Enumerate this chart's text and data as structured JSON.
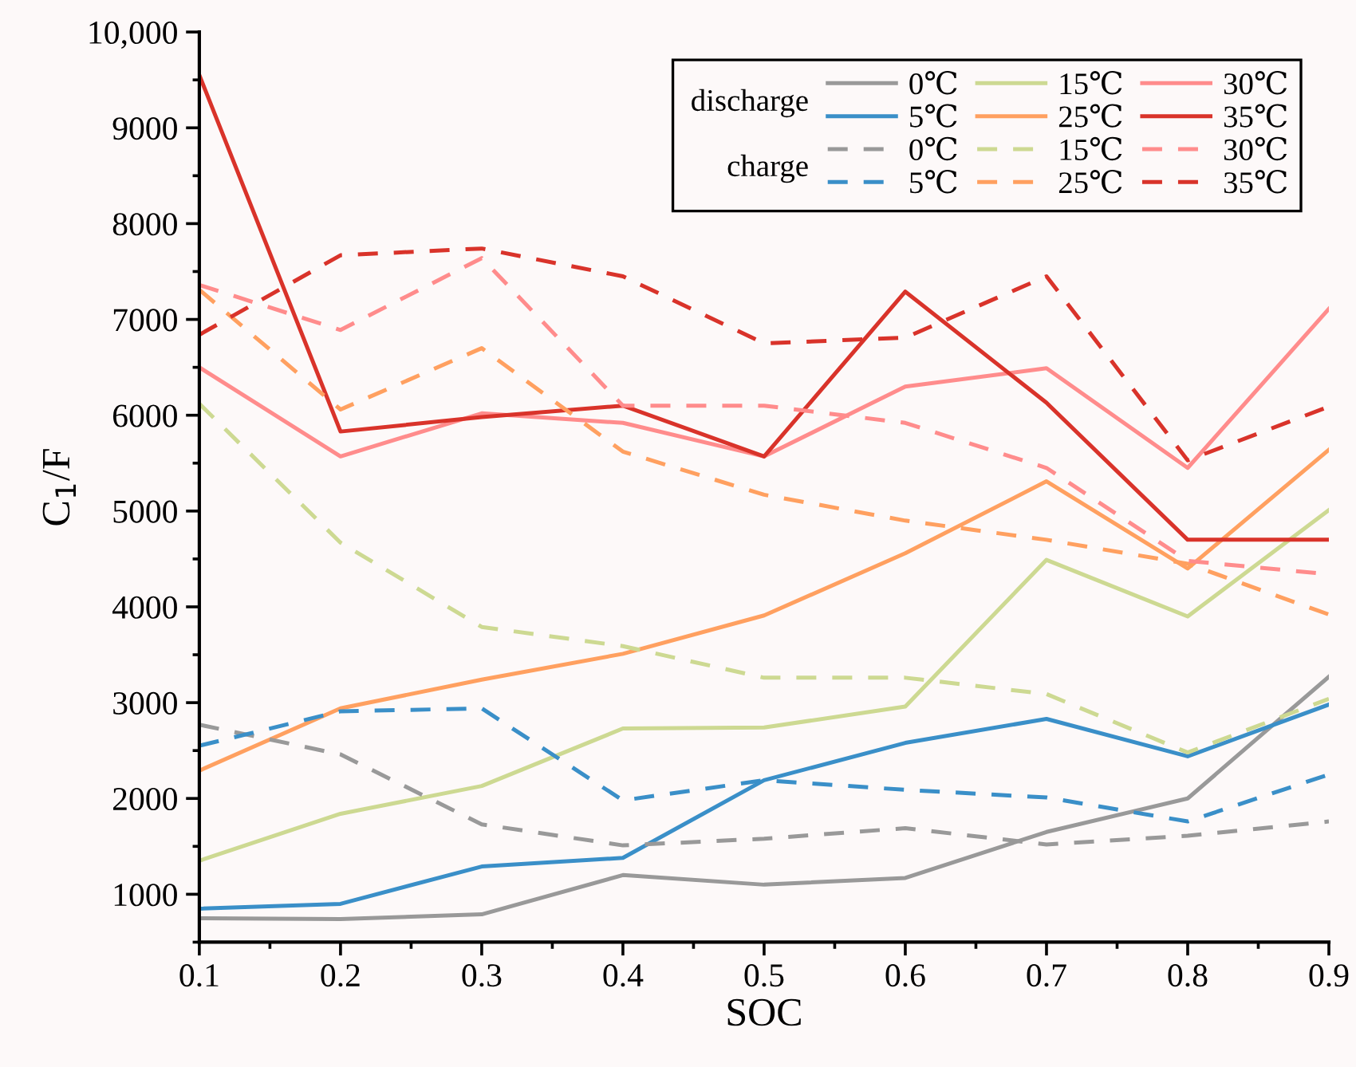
{
  "chart_data": {
    "type": "line",
    "xlabel": "SOC",
    "ylabel": "C$_{1}$/F",
    "x": [
      0.1,
      0.2,
      0.3,
      0.4,
      0.5,
      0.6,
      0.7,
      0.8,
      0.9
    ],
    "xlim": [
      0.1,
      0.9
    ],
    "xticks": [
      0.1,
      0.2,
      0.3,
      0.4,
      0.5,
      0.6,
      0.7,
      0.8,
      0.9
    ],
    "ylim": [
      500,
      10000
    ],
    "yticks": [
      1000,
      2000,
      3000,
      4000,
      5000,
      6000,
      7000,
      8000,
      9000,
      {
        "value": 10000,
        "label": "10,000"
      }
    ],
    "grid": false,
    "legend": "top right",
    "marker": "none",
    "annotations": [
      "discharge",
      "charge"
    ],
    "series": [
      {
        "name": "0℃",
        "color": "#999999",
        "line_style": "solid",
        "values": [
          750,
          740,
          790,
          1200,
          1100,
          1170,
          1650,
          2000,
          3270
        ]
      },
      {
        "name": "5℃",
        "color": "#3a8fc8",
        "line_style": "solid",
        "values": [
          850,
          900,
          1290,
          1380,
          2190,
          2580,
          2830,
          2440,
          2980
        ]
      },
      {
        "name": "15℃",
        "color": "#cdd992",
        "line_style": "solid",
        "values": [
          1350,
          1840,
          2130,
          2730,
          2740,
          2960,
          4490,
          3900,
          5010
        ]
      },
      {
        "name": "25℃",
        "color": "#ffa060",
        "line_style": "solid",
        "values": [
          2290,
          2940,
          3240,
          3510,
          3910,
          4560,
          5310,
          4400,
          5640
        ]
      },
      {
        "name": "30℃",
        "color": "#ff8c8c",
        "line_style": "solid",
        "values": [
          6500,
          5570,
          6020,
          5920,
          5570,
          6300,
          6490,
          5450,
          7110
        ]
      },
      {
        "name": "35℃",
        "color": "#d9332a",
        "line_style": "solid",
        "values": [
          9550,
          5830,
          5980,
          6100,
          5570,
          7290,
          6130,
          4700,
          4700
        ]
      },
      {
        "name": "0℃",
        "color": "#999999",
        "line_style": "dashed",
        "values": [
          2770,
          2460,
          1730,
          1510,
          1580,
          1690,
          1520,
          1610,
          1760
        ]
      },
      {
        "name": "5℃",
        "color": "#3a8fc8",
        "line_style": "dashed",
        "values": [
          2550,
          2910,
          2940,
          1980,
          2190,
          2090,
          2010,
          1760,
          2250
        ]
      },
      {
        "name": "15℃",
        "color": "#cdd992",
        "line_style": "dashed",
        "values": [
          6120,
          4670,
          3790,
          3590,
          3260,
          3260,
          3090,
          2480,
          3040
        ]
      },
      {
        "name": "25℃",
        "color": "#ffa060",
        "line_style": "dashed",
        "values": [
          7310,
          6060,
          6700,
          5620,
          5170,
          4900,
          4700,
          4450,
          3920
        ]
      },
      {
        "name": "30℃",
        "color": "#ff8c8c",
        "line_style": "dashed",
        "values": [
          7360,
          6890,
          7640,
          6100,
          6100,
          5920,
          5450,
          4480,
          4340
        ]
      },
      {
        "name": "35℃",
        "color": "#d9332a",
        "line_style": "dashed",
        "values": [
          6840,
          7670,
          7740,
          7450,
          6750,
          6810,
          7450,
          5530,
          6090
        ]
      }
    ]
  }
}
